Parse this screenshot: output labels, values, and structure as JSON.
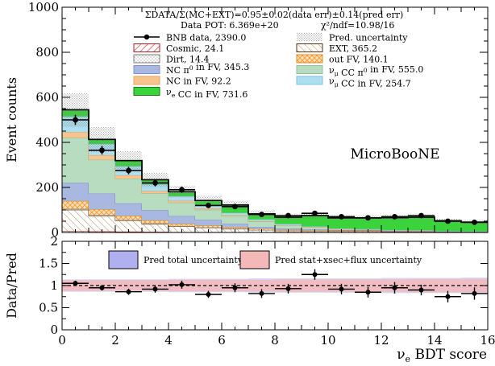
{
  "chart_data": [
    {
      "type": "bar",
      "stacked": true,
      "xlabel": "νe BDT score",
      "ylabel": "Event counts",
      "xlim": [
        0,
        16
      ],
      "ylim": [
        0,
        1000
      ],
      "x_ticks": [
        0,
        2,
        4,
        6,
        8,
        10,
        12,
        14,
        16
      ],
      "y_ticks": [
        0,
        200,
        400,
        600,
        800,
        1000
      ],
      "bin_edges": [
        0,
        1,
        2,
        3,
        4,
        5,
        6,
        7,
        8,
        9,
        10,
        11,
        12,
        13,
        14,
        15,
        16
      ],
      "header_line1": "ΣDATA/Σ(MC+EXT)=0.95±0.02(data err)±0.14(pred err)",
      "header_line2": "Data POT: 6.369e+20",
      "header_chi2": "χ²/ndf=10.98/16",
      "watermark": "MicroBooNE",
      "colors": {
        "cosmic": "#d04040",
        "dirt": "#a0a0a0",
        "nc_pi0": "#a8b8e0",
        "nc_other": "#f7c48c",
        "nue_cc": "#3bd33b",
        "ext": "#7a4a1a",
        "out_fv": "#f2a040",
        "numu_pi0": "#b8dcc0",
        "numu_cc": "#aedff0",
        "unc_band_total": "#b0b0f0",
        "unc_band_stat": "#f5b8b8"
      },
      "series": [
        {
          "name": "Cosmic, 24.1",
          "key": "cosmic",
          "values": [
            6,
            5,
            4,
            3,
            2,
            2,
            1,
            1,
            0,
            0,
            0,
            0,
            0,
            0,
            0,
            0
          ]
        },
        {
          "name": "EXT, 365.2",
          "key": "ext",
          "values": [
            95,
            70,
            50,
            35,
            25,
            20,
            15,
            10,
            8,
            7,
            6,
            6,
            5,
            5,
            4,
            4
          ]
        },
        {
          "name": "Dirt, 14.4",
          "key": "dirt",
          "values": [
            4,
            3,
            2,
            2,
            1,
            1,
            1,
            0,
            0,
            0,
            0,
            0,
            0,
            0,
            0,
            0
          ]
        },
        {
          "name": "out FV, 140.1",
          "key": "out_fv",
          "values": [
            35,
            25,
            18,
            14,
            10,
            8,
            6,
            5,
            4,
            3,
            3,
            3,
            2,
            2,
            1,
            1
          ]
        },
        {
          "name": "NC π⁰ in FV, 345.3",
          "key": "nc_pi0",
          "values": [
            80,
            70,
            55,
            45,
            35,
            25,
            15,
            8,
            5,
            3,
            2,
            2,
            1,
            1,
            0,
            0
          ]
        },
        {
          "name": "νμ CC π⁰ in FV, 555.0",
          "key": "numu_pi0",
          "values": [
            200,
            150,
            110,
            75,
            60,
            45,
            35,
            25,
            15,
            10,
            5,
            3,
            2,
            1,
            1,
            0
          ]
        },
        {
          "name": "NC in FV, 92.2",
          "key": "nc_other",
          "values": [
            25,
            20,
            15,
            10,
            8,
            6,
            4,
            2,
            1,
            1,
            0,
            0,
            0,
            0,
            0,
            0
          ]
        },
        {
          "name": "νμ CC in FV, 254.7",
          "key": "numu_cc",
          "values": [
            70,
            50,
            40,
            30,
            20,
            15,
            10,
            7,
            5,
            3,
            2,
            1,
            1,
            1,
            0,
            0
          ]
        },
        {
          "name": "νe CC in FV, 731.6",
          "key": "nue_cc",
          "values": [
            30,
            20,
            25,
            20,
            20,
            20,
            35,
            25,
            30,
            48,
            47,
            50,
            55,
            58,
            46,
            41
          ]
        }
      ],
      "total_prediction": [
        545,
        413,
        319,
        234,
        181,
        142,
        122,
        83,
        68,
        75,
        65,
        65,
        66,
        68,
        52,
        46
      ],
      "pred_uncertainty": [
        75,
        55,
        43,
        32,
        25,
        20,
        18,
        14,
        12,
        13,
        11,
        11,
        12,
        12,
        10,
        9
      ],
      "data": {
        "name": "BNB data, 2390.0",
        "x": [
          0.5,
          1.5,
          2.5,
          3.5,
          4.5,
          5.5,
          6.5,
          7.5,
          8.5,
          9.5,
          10.5,
          11.5,
          12.5,
          13.5,
          14.5,
          15.5
        ],
        "y": [
          500,
          365,
          275,
          220,
          190,
          120,
          115,
          80,
          75,
          85,
          70,
          65,
          70,
          75,
          50,
          45
        ]
      },
      "legend": [
        {
          "label": "BNB data, 2390.0",
          "key": "data"
        },
        {
          "label": "Pred. uncertainty",
          "key": "pred_unc"
        },
        {
          "label": "Cosmic, 24.1",
          "key": "cosmic"
        },
        {
          "label": "EXT, 365.2",
          "key": "ext"
        },
        {
          "label": "Dirt, 14.4",
          "key": "dirt"
        },
        {
          "label": "out FV, 140.1",
          "key": "out_fv"
        },
        {
          "label": "NC π⁰ in FV,  345.3",
          "key": "nc_pi0"
        },
        {
          "label": "νμ CC π⁰ in FV, 555.0",
          "key": "numu_pi0"
        },
        {
          "label": "NC in FV, 92.2",
          "key": "nc_other"
        },
        {
          "label": "νμ CC in FV, 254.7",
          "key": "numu_cc"
        },
        {
          "label": "νe CC in FV, 731.6",
          "key": "nue_cc"
        }
      ]
    },
    {
      "type": "scatter",
      "xlabel": "νe BDT score",
      "ylabel": "Data/Pred",
      "xlim": [
        0,
        16
      ],
      "ylim": [
        0,
        2
      ],
      "y_ticks": [
        0,
        0.5,
        1,
        1.5,
        2
      ],
      "x_ticks": [
        0,
        2,
        4,
        6,
        8,
        10,
        12,
        14,
        16
      ],
      "legend": [
        {
          "label": "Pred total uncertainty",
          "key": "unc_band_total"
        },
        {
          "label": "Pred stat+xsec+flux uncertainty",
          "key": "unc_band_stat"
        }
      ],
      "x": [
        0.5,
        1.5,
        2.5,
        3.5,
        4.5,
        5.5,
        6.5,
        7.5,
        8.5,
        9.5,
        10.5,
        11.5,
        12.5,
        13.5,
        14.5,
        15.5
      ],
      "y": [
        1.05,
        0.95,
        0.86,
        0.92,
        1.02,
        0.8,
        0.95,
        0.82,
        0.93,
        1.25,
        0.92,
        0.85,
        0.95,
        0.9,
        0.75,
        0.82
      ],
      "yerr": [
        0.06,
        0.06,
        0.07,
        0.08,
        0.09,
        0.08,
        0.1,
        0.1,
        0.11,
        0.12,
        0.12,
        0.12,
        0.13,
        0.12,
        0.13,
        0.14
      ],
      "band_total": [
        0.14,
        0.14,
        0.14,
        0.14,
        0.15,
        0.15,
        0.15,
        0.16,
        0.16,
        0.16,
        0.16,
        0.16,
        0.17,
        0.17,
        0.17,
        0.18
      ],
      "band_stat": [
        0.12,
        0.12,
        0.12,
        0.12,
        0.13,
        0.13,
        0.13,
        0.13,
        0.14,
        0.14,
        0.14,
        0.14,
        0.14,
        0.15,
        0.15,
        0.15
      ]
    }
  ]
}
